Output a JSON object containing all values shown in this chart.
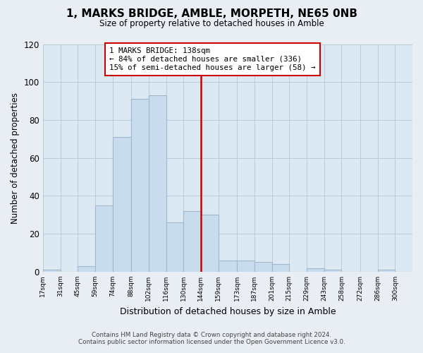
{
  "title": "1, MARKS BRIDGE, AMBLE, MORPETH, NE65 0NB",
  "subtitle": "Size of property relative to detached houses in Amble",
  "xlabel": "Distribution of detached houses by size in Amble",
  "ylabel": "Number of detached properties",
  "bin_labels": [
    "17sqm",
    "31sqm",
    "45sqm",
    "59sqm",
    "74sqm",
    "88sqm",
    "102sqm",
    "116sqm",
    "130sqm",
    "144sqm",
    "159sqm",
    "173sqm",
    "187sqm",
    "201sqm",
    "215sqm",
    "229sqm",
    "243sqm",
    "258sqm",
    "272sqm",
    "286sqm",
    "300sqm"
  ],
  "bar_values": [
    1,
    0,
    3,
    35,
    71,
    91,
    93,
    26,
    32,
    30,
    6,
    6,
    5,
    4,
    0,
    2,
    1,
    0,
    0,
    1,
    0
  ],
  "bar_color": "#c8dcee",
  "bar_edge_color": "#a0b8cc",
  "vline_color": "#cc0000",
  "annotation_title": "1 MARKS BRIDGE: 138sqm",
  "annotation_line1": "← 84% of detached houses are smaller (336)",
  "annotation_line2": "15% of semi-detached houses are larger (58) →",
  "annotation_box_color": "#ffffff",
  "annotation_box_edgecolor": "#cc0000",
  "ylim": [
    0,
    120
  ],
  "yticks": [
    0,
    20,
    40,
    60,
    80,
    100,
    120
  ],
  "bin_edges": [
    10,
    24,
    38,
    52,
    66,
    81,
    95,
    109,
    123,
    137,
    151,
    166,
    180,
    194,
    208,
    222,
    236,
    250,
    265,
    279,
    293,
    307
  ],
  "footer_line1": "Contains HM Land Registry data © Crown copyright and database right 2024.",
  "footer_line2": "Contains public sector information licensed under the Open Government Licence v3.0.",
  "background_color": "#e8eef4",
  "plot_background_color": "#dce8f2",
  "grid_color": "#b8ccd8"
}
